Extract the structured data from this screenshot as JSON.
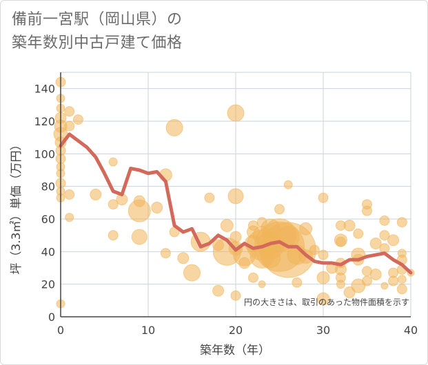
{
  "header": {
    "title_line1": "備前一宮駅（岡山県）の",
    "title_line2": "築年数別中古戸建て価格"
  },
  "chart_data": {
    "type": "scatter",
    "xlabel": "築年数（年）",
    "ylabel": "坪（3.3㎡）単価（万円）",
    "xlim": [
      0,
      40
    ],
    "ylim": [
      0,
      150
    ],
    "x_ticks": [
      0,
      10,
      20,
      30,
      40
    ],
    "y_ticks": [
      0,
      20,
      40,
      60,
      80,
      100,
      120,
      140
    ],
    "grid": true,
    "note": "円の大きさは、取引のあった物件面積を示す",
    "colors": {
      "bubble": "#f0b55a",
      "line": "#d2695a",
      "grid": "#c8d3de",
      "axis": "#444444"
    },
    "points": [
      {
        "x": 0,
        "y": 144,
        "s": 7
      },
      {
        "x": 0,
        "y": 134,
        "s": 6
      },
      {
        "x": 0,
        "y": 128,
        "s": 6
      },
      {
        "x": 0,
        "y": 122,
        "s": 8
      },
      {
        "x": 0,
        "y": 117,
        "s": 9
      },
      {
        "x": 0,
        "y": 112,
        "s": 10
      },
      {
        "x": 0,
        "y": 107,
        "s": 8
      },
      {
        "x": 0,
        "y": 102,
        "s": 7
      },
      {
        "x": 0,
        "y": 97,
        "s": 7
      },
      {
        "x": 0,
        "y": 92,
        "s": 6
      },
      {
        "x": 0,
        "y": 88,
        "s": 6
      },
      {
        "x": 0,
        "y": 82,
        "s": 7
      },
      {
        "x": 0,
        "y": 77,
        "s": 6
      },
      {
        "x": 0,
        "y": 73,
        "s": 6
      },
      {
        "x": 0,
        "y": 8,
        "s": 6
      },
      {
        "x": 1,
        "y": 126,
        "s": 7
      },
      {
        "x": 1,
        "y": 117,
        "s": 7
      },
      {
        "x": 1,
        "y": 75,
        "s": 7
      },
      {
        "x": 1,
        "y": 61,
        "s": 6
      },
      {
        "x": 2,
        "y": 121,
        "s": 7
      },
      {
        "x": 4,
        "y": 75,
        "s": 8
      },
      {
        "x": 6,
        "y": 95,
        "s": 6
      },
      {
        "x": 6,
        "y": 69,
        "s": 7
      },
      {
        "x": 6,
        "y": 50,
        "s": 7
      },
      {
        "x": 7,
        "y": 72,
        "s": 8
      },
      {
        "x": 9,
        "y": 71,
        "s": 8
      },
      {
        "x": 9,
        "y": 65,
        "s": 16
      },
      {
        "x": 9,
        "y": 49,
        "s": 11
      },
      {
        "x": 11,
        "y": 67,
        "s": 8
      },
      {
        "x": 12,
        "y": 87,
        "s": 9
      },
      {
        "x": 12,
        "y": 39,
        "s": 7
      },
      {
        "x": 13,
        "y": 116,
        "s": 12
      },
      {
        "x": 13,
        "y": 52,
        "s": 7
      },
      {
        "x": 14,
        "y": 36,
        "s": 8
      },
      {
        "x": 15,
        "y": 27,
        "s": 12
      },
      {
        "x": 16,
        "y": 46,
        "s": 14
      },
      {
        "x": 17,
        "y": 73,
        "s": 7
      },
      {
        "x": 18,
        "y": 44,
        "s": 8
      },
      {
        "x": 18,
        "y": 16,
        "s": 8
      },
      {
        "x": 19,
        "y": 56,
        "s": 9
      },
      {
        "x": 19,
        "y": 40,
        "s": 20
      },
      {
        "x": 20,
        "y": 125,
        "s": 12
      },
      {
        "x": 20,
        "y": 74,
        "s": 11
      },
      {
        "x": 20,
        "y": 49,
        "s": 8
      },
      {
        "x": 20,
        "y": 42,
        "s": 10
      },
      {
        "x": 20,
        "y": 13,
        "s": 7
      },
      {
        "x": 21,
        "y": 38,
        "s": 16
      },
      {
        "x": 21,
        "y": 33,
        "s": 8
      },
      {
        "x": 22,
        "y": 56,
        "s": 7
      },
      {
        "x": 22,
        "y": 52,
        "s": 9
      },
      {
        "x": 22,
        "y": 45,
        "s": 12
      },
      {
        "x": 22,
        "y": 24,
        "s": 7
      },
      {
        "x": 23,
        "y": 58,
        "s": 7
      },
      {
        "x": 23,
        "y": 50,
        "s": 13
      },
      {
        "x": 23,
        "y": 44,
        "s": 22
      },
      {
        "x": 23,
        "y": 37,
        "s": 17
      },
      {
        "x": 23,
        "y": 20,
        "s": 5
      },
      {
        "x": 24,
        "y": 54,
        "s": 14
      },
      {
        "x": 24,
        "y": 44,
        "s": 20
      },
      {
        "x": 24,
        "y": 36,
        "s": 14
      },
      {
        "x": 25,
        "y": 66,
        "s": 7
      },
      {
        "x": 25,
        "y": 50,
        "s": 24
      },
      {
        "x": 25,
        "y": 43,
        "s": 36
      },
      {
        "x": 26,
        "y": 81,
        "s": 6
      },
      {
        "x": 26,
        "y": 49,
        "s": 16
      },
      {
        "x": 26,
        "y": 41,
        "s": 40
      },
      {
        "x": 27,
        "y": 38,
        "s": 14
      },
      {
        "x": 27,
        "y": 21,
        "s": 7
      },
      {
        "x": 28,
        "y": 54,
        "s": 9
      },
      {
        "x": 28,
        "y": 37,
        "s": 10
      },
      {
        "x": 29,
        "y": 41,
        "s": 7
      },
      {
        "x": 30,
        "y": 73,
        "s": 7
      },
      {
        "x": 30,
        "y": 38,
        "s": 7
      },
      {
        "x": 30,
        "y": 24,
        "s": 9
      },
      {
        "x": 30,
        "y": 11,
        "s": 9
      },
      {
        "x": 31,
        "y": 30,
        "s": 8
      },
      {
        "x": 32,
        "y": 56,
        "s": 7
      },
      {
        "x": 32,
        "y": 47,
        "s": 9
      },
      {
        "x": 32,
        "y": 46,
        "s": 7
      },
      {
        "x": 32,
        "y": 33,
        "s": 7
      },
      {
        "x": 32,
        "y": 29,
        "s": 8
      },
      {
        "x": 32,
        "y": 24,
        "s": 7
      },
      {
        "x": 32,
        "y": 20,
        "s": 6
      },
      {
        "x": 33,
        "y": 56,
        "s": 8
      },
      {
        "x": 33,
        "y": 15,
        "s": 8
      },
      {
        "x": 34,
        "y": 51,
        "s": 7
      },
      {
        "x": 34,
        "y": 38,
        "s": 10
      },
      {
        "x": 34,
        "y": 35,
        "s": 8
      },
      {
        "x": 34,
        "y": 19,
        "s": 10
      },
      {
        "x": 35,
        "y": 69,
        "s": 7
      },
      {
        "x": 35,
        "y": 65,
        "s": 7
      },
      {
        "x": 35,
        "y": 28,
        "s": 7
      },
      {
        "x": 35,
        "y": 22,
        "s": 7
      },
      {
        "x": 36,
        "y": 45,
        "s": 8
      },
      {
        "x": 36,
        "y": 26,
        "s": 8
      },
      {
        "x": 37,
        "y": 59,
        "s": 7
      },
      {
        "x": 37,
        "y": 50,
        "s": 7
      },
      {
        "x": 37,
        "y": 42,
        "s": 7
      },
      {
        "x": 37,
        "y": 19,
        "s": 5
      },
      {
        "x": 38,
        "y": 47,
        "s": 8
      },
      {
        "x": 38,
        "y": 27,
        "s": 7
      },
      {
        "x": 38,
        "y": 22,
        "s": 7
      },
      {
        "x": 39,
        "y": 58,
        "s": 7
      },
      {
        "x": 39,
        "y": 39,
        "s": 6
      },
      {
        "x": 39,
        "y": 35,
        "s": 7
      },
      {
        "x": 39,
        "y": 29,
        "s": 7
      },
      {
        "x": 39,
        "y": 23,
        "s": 6
      },
      {
        "x": 39,
        "y": 17,
        "s": 7
      },
      {
        "x": 40,
        "y": 27,
        "s": 5
      }
    ],
    "trend": [
      {
        "x": 0,
        "y": 105
      },
      {
        "x": 1,
        "y": 112
      },
      {
        "x": 2,
        "y": 108
      },
      {
        "x": 3,
        "y": 104
      },
      {
        "x": 4,
        "y": 98
      },
      {
        "x": 5,
        "y": 88
      },
      {
        "x": 6,
        "y": 77
      },
      {
        "x": 7,
        "y": 75
      },
      {
        "x": 8,
        "y": 91
      },
      {
        "x": 9,
        "y": 90
      },
      {
        "x": 10,
        "y": 88
      },
      {
        "x": 11,
        "y": 89
      },
      {
        "x": 12,
        "y": 83
      },
      {
        "x": 13,
        "y": 56
      },
      {
        "x": 14,
        "y": 52
      },
      {
        "x": 15,
        "y": 54
      },
      {
        "x": 16,
        "y": 43
      },
      {
        "x": 17,
        "y": 45
      },
      {
        "x": 18,
        "y": 50
      },
      {
        "x": 19,
        "y": 47
      },
      {
        "x": 20,
        "y": 41
      },
      {
        "x": 21,
        "y": 45
      },
      {
        "x": 22,
        "y": 42
      },
      {
        "x": 23,
        "y": 43
      },
      {
        "x": 24,
        "y": 45
      },
      {
        "x": 25,
        "y": 46
      },
      {
        "x": 26,
        "y": 43
      },
      {
        "x": 27,
        "y": 43
      },
      {
        "x": 28,
        "y": 38
      },
      {
        "x": 29,
        "y": 34
      },
      {
        "x": 30,
        "y": 33
      },
      {
        "x": 31,
        "y": 33
      },
      {
        "x": 32,
        "y": 32
      },
      {
        "x": 33,
        "y": 35
      },
      {
        "x": 34,
        "y": 35
      },
      {
        "x": 35,
        "y": 37
      },
      {
        "x": 36,
        "y": 38
      },
      {
        "x": 37,
        "y": 39
      },
      {
        "x": 38,
        "y": 35
      },
      {
        "x": 39,
        "y": 32
      },
      {
        "x": 40,
        "y": 27
      }
    ]
  }
}
